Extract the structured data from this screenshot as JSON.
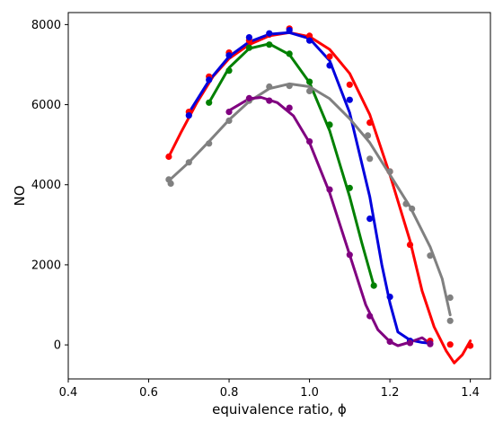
{
  "chart_data": {
    "type": "line",
    "title": "",
    "xlabel": "equivalence ratio, ϕ",
    "ylabel": "NO",
    "xlim": [
      0.4,
      1.45
    ],
    "ylim": [
      -850,
      8300
    ],
    "xticks": [
      0.4,
      0.6,
      0.8,
      1.0,
      1.2,
      1.4
    ],
    "xtick_labels": [
      "0.4",
      "0.6",
      "0.8",
      "1.0",
      "1.2",
      "1.4"
    ],
    "yticks": [
      0,
      2000,
      4000,
      6000,
      8000
    ],
    "ytick_labels": [
      "0",
      "2000",
      "4000",
      "6000",
      "8000"
    ],
    "grid": false,
    "legend": "none",
    "series": [
      {
        "color": "#ff0000",
        "points": [
          [
            0.65,
            4700
          ],
          [
            0.7,
            5820
          ],
          [
            0.75,
            6700
          ],
          [
            0.8,
            7300
          ],
          [
            0.85,
            7600
          ],
          [
            0.9,
            7750
          ],
          [
            0.95,
            7900
          ],
          [
            1.0,
            7720
          ],
          [
            1.05,
            7200
          ],
          [
            1.1,
            6500
          ],
          [
            1.15,
            5550
          ],
          [
            1.2,
            4330
          ],
          [
            1.25,
            2500
          ],
          [
            1.3,
            100
          ],
          [
            1.35,
            10
          ],
          [
            1.4,
            -20
          ]
        ],
        "curve": [
          [
            0.65,
            4700
          ],
          [
            0.68,
            5300
          ],
          [
            0.72,
            6050
          ],
          [
            0.76,
            6700
          ],
          [
            0.8,
            7150
          ],
          [
            0.85,
            7500
          ],
          [
            0.9,
            7720
          ],
          [
            0.95,
            7800
          ],
          [
            1.0,
            7700
          ],
          [
            1.05,
            7380
          ],
          [
            1.1,
            6780
          ],
          [
            1.15,
            5750
          ],
          [
            1.2,
            4250
          ],
          [
            1.25,
            2600
          ],
          [
            1.28,
            1350
          ],
          [
            1.31,
            450
          ],
          [
            1.34,
            -150
          ],
          [
            1.36,
            -450
          ],
          [
            1.38,
            -250
          ],
          [
            1.4,
            100
          ]
        ]
      },
      {
        "color": "#0000dd",
        "points": [
          [
            0.7,
            5730
          ],
          [
            0.75,
            6620
          ],
          [
            0.8,
            7230
          ],
          [
            0.85,
            7680
          ],
          [
            0.9,
            7780
          ],
          [
            0.95,
            7860
          ],
          [
            1.0,
            7600
          ],
          [
            1.05,
            6980
          ],
          [
            1.1,
            6120
          ],
          [
            1.15,
            3150
          ],
          [
            1.2,
            1200
          ],
          [
            1.25,
            100
          ],
          [
            1.3,
            30
          ]
        ],
        "curve": [
          [
            0.7,
            5800
          ],
          [
            0.75,
            6600
          ],
          [
            0.8,
            7200
          ],
          [
            0.85,
            7570
          ],
          [
            0.9,
            7760
          ],
          [
            0.95,
            7800
          ],
          [
            1.0,
            7650
          ],
          [
            1.05,
            7100
          ],
          [
            1.1,
            5800
          ],
          [
            1.15,
            3700
          ],
          [
            1.18,
            2000
          ],
          [
            1.2,
            1050
          ],
          [
            1.22,
            320
          ],
          [
            1.25,
            120
          ],
          [
            1.28,
            60
          ],
          [
            1.3,
            40
          ]
        ]
      },
      {
        "color": "#008000",
        "points": [
          [
            0.75,
            6050
          ],
          [
            0.8,
            6850
          ],
          [
            0.85,
            7420
          ],
          [
            0.9,
            7500
          ],
          [
            0.95,
            7270
          ],
          [
            1.0,
            6570
          ],
          [
            1.05,
            5500
          ],
          [
            1.1,
            3920
          ],
          [
            1.16,
            1480
          ]
        ],
        "curve": [
          [
            0.75,
            6050
          ],
          [
            0.8,
            6920
          ],
          [
            0.85,
            7400
          ],
          [
            0.9,
            7520
          ],
          [
            0.95,
            7250
          ],
          [
            1.0,
            6550
          ],
          [
            1.05,
            5350
          ],
          [
            1.1,
            3700
          ],
          [
            1.13,
            2550
          ],
          [
            1.16,
            1480
          ]
        ]
      },
      {
        "color": "#808080",
        "points": [
          [
            0.65,
            4130
          ],
          [
            0.655,
            4030
          ],
          [
            0.7,
            4560
          ],
          [
            0.75,
            5030
          ],
          [
            0.8,
            5600
          ],
          [
            0.85,
            6100
          ],
          [
            0.9,
            6450
          ],
          [
            0.95,
            6470
          ],
          [
            1.0,
            6340
          ],
          [
            1.145,
            5230
          ],
          [
            1.15,
            4650
          ],
          [
            1.2,
            4330
          ],
          [
            1.24,
            3520
          ],
          [
            1.255,
            3400
          ],
          [
            1.3,
            2230
          ],
          [
            1.35,
            1180
          ],
          [
            1.35,
            600
          ]
        ],
        "curve": [
          [
            0.65,
            4100
          ],
          [
            0.7,
            4560
          ],
          [
            0.75,
            5080
          ],
          [
            0.8,
            5620
          ],
          [
            0.85,
            6080
          ],
          [
            0.9,
            6400
          ],
          [
            0.95,
            6520
          ],
          [
            1.0,
            6450
          ],
          [
            1.05,
            6150
          ],
          [
            1.1,
            5650
          ],
          [
            1.15,
            5050
          ],
          [
            1.2,
            4250
          ],
          [
            1.25,
            3450
          ],
          [
            1.3,
            2450
          ],
          [
            1.33,
            1650
          ],
          [
            1.35,
            750
          ]
        ]
      },
      {
        "color": "#800080",
        "points": [
          [
            0.8,
            5820
          ],
          [
            0.85,
            6160
          ],
          [
            0.9,
            6100
          ],
          [
            0.95,
            5920
          ],
          [
            1.0,
            5080
          ],
          [
            1.05,
            3880
          ],
          [
            1.1,
            2250
          ],
          [
            1.15,
            720
          ],
          [
            1.2,
            80
          ],
          [
            1.25,
            50
          ],
          [
            1.3,
            20
          ]
        ],
        "curve": [
          [
            0.8,
            5850
          ],
          [
            0.85,
            6150
          ],
          [
            0.88,
            6180
          ],
          [
            0.92,
            6050
          ],
          [
            0.96,
            5720
          ],
          [
            1.0,
            5050
          ],
          [
            1.05,
            3800
          ],
          [
            1.1,
            2250
          ],
          [
            1.14,
            1000
          ],
          [
            1.17,
            380
          ],
          [
            1.2,
            80
          ],
          [
            1.22,
            -20
          ],
          [
            1.25,
            70
          ],
          [
            1.28,
            180
          ],
          [
            1.3,
            30
          ]
        ]
      }
    ]
  }
}
